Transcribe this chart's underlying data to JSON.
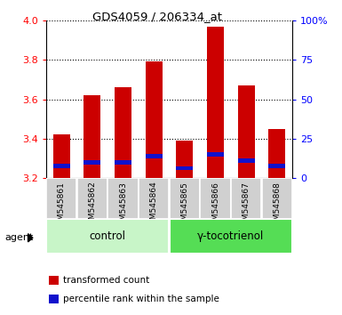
{
  "title": "GDS4059 / 206334_at",
  "samples": [
    "GSM545861",
    "GSM545862",
    "GSM545863",
    "GSM545864",
    "GSM545865",
    "GSM545866",
    "GSM545867",
    "GSM545868"
  ],
  "transformed_counts": [
    3.42,
    3.62,
    3.66,
    3.79,
    3.39,
    3.97,
    3.67,
    3.45
  ],
  "percentile_ranks": [
    3.26,
    3.28,
    3.28,
    3.31,
    3.25,
    3.32,
    3.29,
    3.26
  ],
  "bar_bottom": 3.2,
  "ylim": [
    3.2,
    4.0
  ],
  "y2lim": [
    0,
    100
  ],
  "yticks": [
    3.2,
    3.4,
    3.6,
    3.8,
    4.0
  ],
  "y2ticks": [
    0,
    25,
    50,
    75,
    100
  ],
  "y2ticklabels": [
    "0",
    "25",
    "50",
    "75",
    "100%"
  ],
  "groups": [
    {
      "label": "control",
      "indices": [
        0,
        1,
        2,
        3
      ],
      "color": "#c8f5c8"
    },
    {
      "label": "γ-tocotrienol",
      "indices": [
        4,
        5,
        6,
        7
      ],
      "color": "#55dd55"
    }
  ],
  "agent_label": "agent",
  "bar_color_red": "#cc0000",
  "bar_color_blue": "#1111cc",
  "bar_width": 0.55,
  "tick_bg_color": "#d0d0d0",
  "legend_items": [
    {
      "color": "#cc0000",
      "label": "transformed count"
    },
    {
      "color": "#1111cc",
      "label": "percentile rank within the sample"
    }
  ]
}
